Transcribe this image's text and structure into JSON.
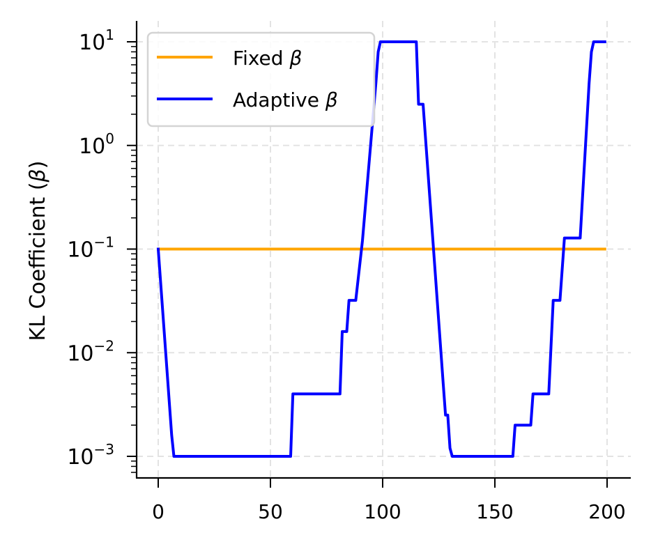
{
  "chart_data": {
    "type": "line",
    "title": "",
    "xlabel": "",
    "ylabel": "KL Coefficient (β)",
    "yscale": "log",
    "xlim": [
      -10,
      209
    ],
    "ylim": [
      0.0006,
      16
    ],
    "xticks": [
      0,
      50,
      100,
      150,
      200
    ],
    "xtick_labels": [
      "0",
      "50",
      "100",
      "150",
      "200"
    ],
    "yticks": [
      0.001,
      0.01,
      0.1,
      1,
      10
    ],
    "ytick_labels": [
      {
        "base": "10",
        "exp": "−3"
      },
      {
        "base": "10",
        "exp": "−2"
      },
      {
        "base": "10",
        "exp": "−1"
      },
      {
        "base": "10",
        "exp": "0"
      },
      {
        "base": "10",
        "exp": "1"
      }
    ],
    "grid": true,
    "legend_position": "upper left",
    "series": [
      {
        "name": "Fixed β",
        "color": "#FFA500",
        "x": [
          0,
          199
        ],
        "values": [
          0.1,
          0.1
        ]
      },
      {
        "name": "Adaptive β",
        "color": "#0000FF",
        "x": [
          0,
          6,
          7,
          59,
          60,
          81,
          82,
          84,
          85,
          87,
          88,
          91,
          97,
          98,
          99,
          114,
          115,
          116,
          117,
          118,
          127,
          128,
          129,
          130,
          131,
          158,
          159,
          166,
          167,
          173,
          174,
          176,
          177,
          179,
          180,
          181,
          187,
          188,
          192,
          193,
          194,
          199
        ],
        "values": [
          0.1,
          0.0016,
          0.001,
          0.001,
          0.004,
          0.004,
          0.016,
          0.016,
          0.032,
          0.032,
          0.032,
          0.12,
          4,
          8,
          10,
          10,
          10,
          2.5,
          2.5,
          2.5,
          0.005,
          0.0025,
          0.0025,
          0.0012,
          0.001,
          0.001,
          0.002,
          0.002,
          0.004,
          0.004,
          0.004,
          0.032,
          0.032,
          0.032,
          0.064,
          0.128,
          0.128,
          0.128,
          4,
          8,
          10,
          10
        ]
      }
    ]
  },
  "legend": {
    "items": [
      {
        "label": "Fixed ",
        "symbol": "β",
        "color": "#FFA500"
      },
      {
        "label": "Adaptive ",
        "symbol": "β",
        "color": "#0000FF"
      }
    ]
  },
  "axes": {
    "ylabel_text": "KL Coefficient (",
    "ylabel_symbol": "β",
    "ylabel_close": ")"
  }
}
